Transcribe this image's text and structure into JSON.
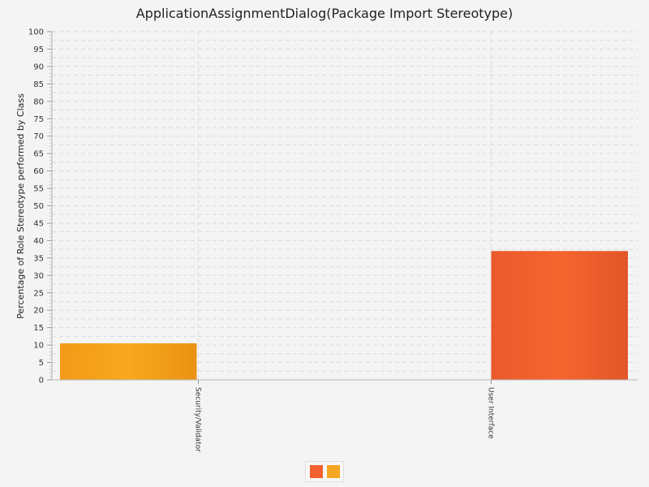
{
  "title": "ApplicationAssignmentDialog(Package Import Stereotype)",
  "chart_data": {
    "type": "bar",
    "title": "ApplicationAssignmentDialog(Package Import Stereotype)",
    "xlabel": "",
    "ylabel": "Percentage of Role Stereotype performed by Class",
    "categories": [
      "Security/Validator",
      "User Interface"
    ],
    "series": [
      {
        "values": [
          10.5,
          null
        ],
        "color": "#f5a623"
      },
      {
        "values": [
          null,
          37
        ],
        "color": "#f26130"
      }
    ],
    "ylim": [
      0,
      100
    ],
    "yticks": [
      0,
      5,
      10,
      15,
      20,
      25,
      30,
      35,
      40,
      45,
      50,
      55,
      60,
      65,
      70,
      75,
      80,
      85,
      90,
      95,
      100
    ],
    "grid": true,
    "legend": {
      "position": "bottom-center",
      "swatches": [
        {
          "color": "#f26130"
        },
        {
          "color": "#f5a623"
        }
      ]
    }
  }
}
